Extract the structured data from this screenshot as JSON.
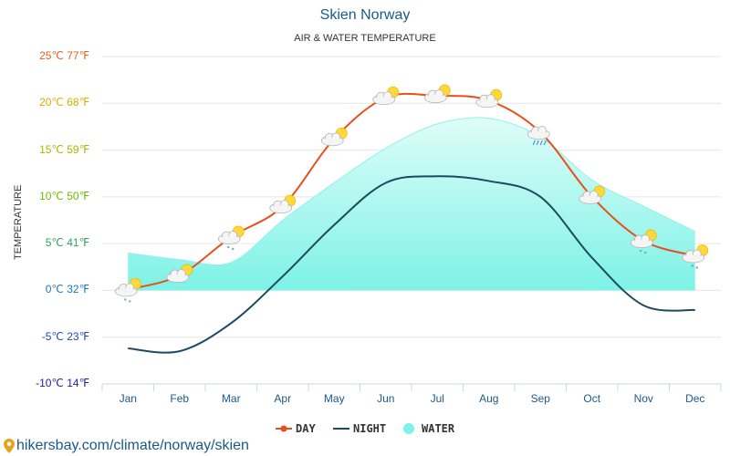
{
  "colors": {
    "day": "#e8501a",
    "night": "#1c4a60",
    "water_fill": "#7df2e6",
    "water_edge": "#8ff2ea",
    "accent": "#1a5a8a"
  },
  "chart_data": {
    "type": "line",
    "title": "Skien Norway",
    "subtitle": "AIR & WATER TEMPERATURE",
    "ylabel": "TEMPERATURE",
    "ylim": [
      -10,
      25
    ],
    "yticks": [
      {
        "value": 25,
        "label": "25℃ 77℉",
        "color": "#e8601a"
      },
      {
        "value": 20,
        "label": "20℃ 68℉",
        "color": "#d4b000"
      },
      {
        "value": 15,
        "label": "15℃ 59℉",
        "color": "#a6b800"
      },
      {
        "value": 10,
        "label": "10℃ 50℉",
        "color": "#6fb800"
      },
      {
        "value": 5,
        "label": "5℃ 41℉",
        "color": "#2fa060"
      },
      {
        "value": 0,
        "label": "0℃ 32℉",
        "color": "#1a7ab8"
      },
      {
        "value": -5,
        "label": "-5℃ 23℉",
        "color": "#1a4ab8"
      },
      {
        "value": -10,
        "label": "-10℃ 14℉",
        "color": "#2020a0"
      }
    ],
    "categories": [
      "Jan",
      "Feb",
      "Mar",
      "Apr",
      "May",
      "Jun",
      "Jul",
      "Aug",
      "Sep",
      "Oct",
      "Nov",
      "Dec"
    ],
    "series": [
      {
        "name": "DAY",
        "values": [
          0.1,
          1.6,
          5.7,
          9.0,
          16.2,
          20.6,
          20.8,
          20.3,
          16.9,
          10.0,
          5.3,
          3.7
        ]
      },
      {
        "name": "NIGHT",
        "values": [
          -6.2,
          -6.5,
          -3.5,
          1.5,
          7.0,
          11.5,
          12.2,
          11.7,
          10.0,
          3.5,
          -1.6,
          -2.1
        ]
      },
      {
        "name": "WATER",
        "values": [
          4.0,
          3.3,
          3.0,
          7.5,
          11.5,
          15.2,
          17.8,
          18.4,
          16.4,
          11.8,
          9.0,
          6.3
        ]
      }
    ],
    "weather_icons": [
      "snow",
      "cloud-sun",
      "cloud-snow",
      "cloud-sun",
      "cloud-sun",
      "cloud-sun",
      "cloud-sun",
      "cloud-sun",
      "rain",
      "cloud-sun",
      "cloud-snow",
      "cloud-snow"
    ]
  },
  "legend": {
    "day": "DAY",
    "night": "NIGHT",
    "water": "WATER"
  },
  "footer": {
    "text": "hikersbay.com/climate/norway/skien"
  }
}
